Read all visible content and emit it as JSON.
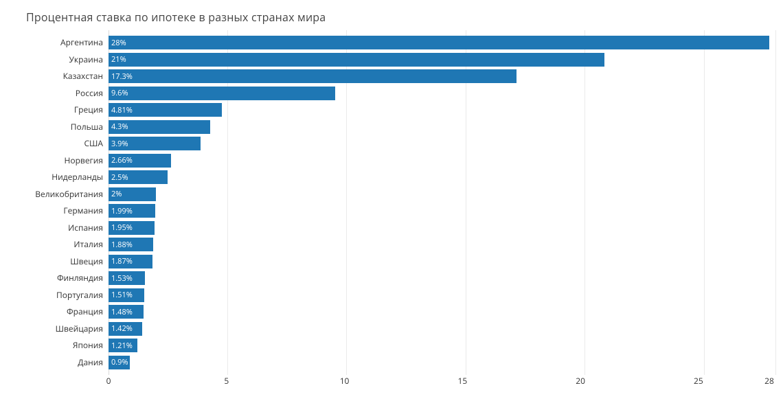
{
  "chart": {
    "type": "bar-horizontal",
    "title": "Процентная ставка по ипотеке в разных странах мира",
    "title_fontsize": 16,
    "title_color": "#444444",
    "background_color": "#ffffff",
    "bar_color": "#1f77b4",
    "grid_color": "#eaeaea",
    "axis_color": "#d9d9d9",
    "label_fontsize": 12,
    "bar_label_fontsize": 11,
    "bar_label_color": "#ffffff",
    "xlim": [
      0,
      28
    ],
    "xticks": [
      0,
      5,
      10,
      15,
      20,
      25,
      28
    ],
    "countries": [
      {
        "name": "Аргентина",
        "value": 28,
        "label": "28%"
      },
      {
        "name": "Украина",
        "value": 21,
        "label": "21%"
      },
      {
        "name": "Казахстан",
        "value": 17.3,
        "label": "17.3%"
      },
      {
        "name": "Россия",
        "value": 9.6,
        "label": "9.6%"
      },
      {
        "name": "Греция",
        "value": 4.81,
        "label": "4.81%"
      },
      {
        "name": "Польша",
        "value": 4.3,
        "label": "4.3%"
      },
      {
        "name": "США",
        "value": 3.9,
        "label": "3.9%"
      },
      {
        "name": "Норвегия",
        "value": 2.66,
        "label": "2.66%"
      },
      {
        "name": "Нидерланды",
        "value": 2.5,
        "label": "2.5%"
      },
      {
        "name": "Великобритания",
        "value": 2,
        "label": "2%"
      },
      {
        "name": "Германия",
        "value": 1.99,
        "label": "1.99%"
      },
      {
        "name": "Испания",
        "value": 1.95,
        "label": "1.95%"
      },
      {
        "name": "Италия",
        "value": 1.88,
        "label": "1.88%"
      },
      {
        "name": "Швеция",
        "value": 1.87,
        "label": "1.87%"
      },
      {
        "name": "Финляндия",
        "value": 1.53,
        "label": "1.53%"
      },
      {
        "name": "Португалия",
        "value": 1.51,
        "label": "1.51%"
      },
      {
        "name": "Франция",
        "value": 1.48,
        "label": "1.48%"
      },
      {
        "name": "Швейцария",
        "value": 1.42,
        "label": "1.42%"
      },
      {
        "name": "Япония",
        "value": 1.21,
        "label": "1.21%"
      },
      {
        "name": "Дания",
        "value": 0.9,
        "label": "0.9%"
      }
    ]
  }
}
